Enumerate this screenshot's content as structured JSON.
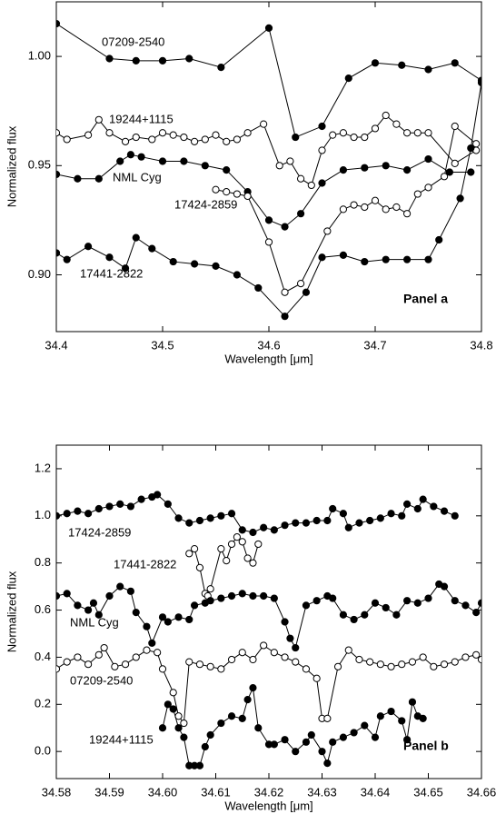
{
  "chart_data": [
    {
      "type": "line",
      "xlabel": "Wavelength [μm]",
      "ylabel": "Normalized flux",
      "annotation": "Panel   a",
      "xlim": [
        34.4,
        34.8
      ],
      "xticks": [
        34.4,
        34.5,
        34.6,
        34.7,
        34.8
      ],
      "ylim": [
        0.874,
        1.025
      ],
      "yticks": [
        {
          "value": 0.9,
          "label": "0.90"
        },
        {
          "value": 0.95,
          "label": "0.95"
        },
        {
          "value": 1.0,
          "label": "1.00"
        }
      ],
      "grid": false,
      "series": [
        {
          "name": "07209-2540",
          "color": "#000000",
          "filled": true,
          "x": [
            34.4,
            34.45,
            34.475,
            34.5,
            34.525,
            34.555,
            34.6,
            34.625,
            34.65,
            34.675,
            34.7,
            34.725,
            34.75,
            34.775,
            34.8
          ],
          "values": [
            1.015,
            0.999,
            0.998,
            0.998,
            0.999,
            0.995,
            1.013,
            0.963,
            0.968,
            0.99,
            0.997,
            0.996,
            0.994,
            0.997,
            0.989
          ]
        },
        {
          "name": "19244+1115",
          "color": "#000000",
          "filled": false,
          "x": [
            34.4,
            34.41,
            34.43,
            34.44,
            34.45,
            34.465,
            34.475,
            34.49,
            34.5,
            34.51,
            34.52,
            34.53,
            34.54,
            34.55,
            34.56,
            34.57,
            34.58,
            34.595,
            34.61,
            34.62,
            34.63,
            34.64,
            34.65,
            34.66,
            34.67,
            34.68,
            34.69,
            34.7,
            34.71,
            34.72,
            34.73,
            34.74,
            34.75,
            34.775,
            34.795
          ],
          "values": [
            0.965,
            0.962,
            0.964,
            0.971,
            0.965,
            0.961,
            0.963,
            0.962,
            0.965,
            0.964,
            0.963,
            0.961,
            0.962,
            0.964,
            0.961,
            0.962,
            0.965,
            0.969,
            0.95,
            0.952,
            0.944,
            0.941,
            0.957,
            0.964,
            0.965,
            0.963,
            0.963,
            0.967,
            0.973,
            0.969,
            0.965,
            0.965,
            0.965,
            0.951,
            0.957
          ]
        },
        {
          "name": "NML Cyg",
          "color": "#000000",
          "filled": true,
          "x": [
            34.4,
            34.42,
            34.44,
            34.46,
            34.47,
            34.48,
            34.5,
            34.52,
            34.54,
            34.56,
            34.58,
            34.6,
            34.615,
            34.63,
            34.65,
            34.67,
            34.69,
            34.71,
            34.73,
            34.75,
            34.77,
            34.79
          ],
          "values": [
            0.946,
            0.944,
            0.944,
            0.952,
            0.955,
            0.954,
            0.952,
            0.952,
            0.95,
            0.948,
            0.938,
            0.925,
            0.922,
            0.928,
            0.942,
            0.948,
            0.949,
            0.95,
            0.948,
            0.953,
            0.947,
            0.947
          ]
        },
        {
          "name": "17424-2859",
          "color": "#000000",
          "filled": false,
          "x": [
            34.55,
            34.56,
            34.57,
            34.58,
            34.6,
            34.615,
            34.63,
            34.655,
            34.67,
            34.68,
            34.69,
            34.7,
            34.71,
            34.72,
            34.73,
            34.74,
            34.75,
            34.765,
            34.775,
            34.795
          ],
          "values": [
            0.939,
            0.938,
            0.937,
            0.936,
            0.915,
            0.892,
            0.896,
            0.92,
            0.93,
            0.932,
            0.931,
            0.934,
            0.93,
            0.931,
            0.928,
            0.937,
            0.94,
            0.945,
            0.968,
            0.96
          ]
        },
        {
          "name": "17441-2822",
          "color": "#000000",
          "filled": true,
          "x": [
            34.4,
            34.41,
            34.43,
            34.45,
            34.465,
            34.475,
            34.49,
            34.51,
            34.53,
            34.55,
            34.57,
            34.59,
            34.615,
            34.635,
            34.65,
            34.67,
            34.69,
            34.71,
            34.73,
            34.75,
            34.76,
            34.78,
            34.79,
            34.8
          ],
          "values": [
            0.91,
            0.907,
            0.913,
            0.908,
            0.903,
            0.917,
            0.912,
            0.906,
            0.905,
            0.904,
            0.9,
            0.894,
            0.881,
            0.892,
            0.908,
            0.909,
            0.906,
            0.907,
            0.907,
            0.907,
            0.916,
            0.935,
            0.958,
            0.988
          ]
        }
      ]
    },
    {
      "type": "line",
      "xlabel": "Wavelength [μm]",
      "ylabel": "Normalized  flux",
      "annotation": "Panel  b",
      "xlim": [
        34.58,
        34.66
      ],
      "xticks": [
        34.58,
        34.59,
        {
          "value": 34.6,
          "label": "34.60"
        },
        34.61,
        34.62,
        34.63,
        34.64,
        34.65,
        34.66
      ],
      "ylim": [
        -0.115,
        1.3
      ],
      "yticks": [
        {
          "value": 0,
          "label": "0.0"
        },
        0.2,
        0.4,
        0.6,
        0.8,
        {
          "value": 1,
          "label": "1.0"
        },
        1.2
      ],
      "grid": false,
      "series": [
        {
          "name": "17424-2859",
          "color": "#000000",
          "filled": true,
          "x": [
            34.58,
            34.582,
            34.584,
            34.586,
            34.588,
            34.59,
            34.592,
            34.594,
            34.596,
            34.598,
            34.599,
            34.601,
            34.603,
            34.605,
            34.607,
            34.609,
            34.611,
            34.613,
            34.615,
            34.617,
            34.619,
            34.621,
            34.623,
            34.625,
            34.627,
            34.629,
            34.631,
            34.632,
            34.634,
            34.635,
            34.637,
            34.639,
            34.641,
            34.643,
            34.645,
            34.646,
            34.648,
            34.649,
            34.651,
            34.653,
            34.655
          ],
          "values": [
            1.0,
            1.01,
            1.02,
            1.01,
            1.03,
            1.04,
            1.05,
            1.04,
            1.07,
            1.08,
            1.09,
            1.05,
            0.99,
            0.97,
            0.98,
            0.99,
            1.0,
            1.01,
            0.94,
            0.93,
            0.95,
            0.94,
            0.96,
            0.97,
            0.97,
            0.98,
            0.98,
            1.03,
            1.01,
            0.95,
            0.97,
            0.98,
            0.99,
            1.01,
            1.0,
            1.05,
            1.03,
            1.07,
            1.04,
            1.02,
            1.0
          ]
        },
        {
          "name": "17441-2822",
          "color": "#000000",
          "filled": false,
          "x": [
            34.605,
            34.606,
            34.607,
            34.608,
            34.6085,
            34.609,
            34.611,
            34.612,
            34.613,
            34.614,
            34.615,
            34.616,
            34.617,
            34.618
          ],
          "values": [
            0.84,
            0.86,
            0.78,
            0.67,
            0.66,
            0.69,
            0.86,
            0.81,
            0.88,
            0.91,
            0.89,
            0.82,
            0.8,
            0.88
          ]
        },
        {
          "name": "NML Cyg",
          "color": "#000000",
          "filled": true,
          "x": [
            34.58,
            34.582,
            34.584,
            34.586,
            34.587,
            34.588,
            34.59,
            34.592,
            34.594,
            34.595,
            34.597,
            34.598,
            34.6,
            34.601,
            34.603,
            34.605,
            34.606,
            34.608,
            34.609,
            34.611,
            34.613,
            34.615,
            34.617,
            34.619,
            34.621,
            34.623,
            34.624,
            34.625,
            34.627,
            34.629,
            34.631,
            34.632,
            34.634,
            34.636,
            34.638,
            34.64,
            34.642,
            34.644,
            34.646,
            34.648,
            34.65,
            34.652,
            34.653,
            34.655,
            34.657,
            34.659,
            34.66
          ],
          "values": [
            0.66,
            0.67,
            0.62,
            0.6,
            0.63,
            0.58,
            0.66,
            0.7,
            0.68,
            0.59,
            0.53,
            0.46,
            0.57,
            0.55,
            0.57,
            0.56,
            0.62,
            0.63,
            0.64,
            0.65,
            0.66,
            0.67,
            0.66,
            0.66,
            0.65,
            0.55,
            0.48,
            0.44,
            0.62,
            0.64,
            0.66,
            0.65,
            0.58,
            0.56,
            0.58,
            0.63,
            0.61,
            0.58,
            0.64,
            0.63,
            0.65,
            0.71,
            0.7,
            0.64,
            0.62,
            0.59,
            0.63
          ]
        },
        {
          "name": "07209-2540",
          "color": "#000000",
          "filled": false,
          "x": [
            34.58,
            34.582,
            34.584,
            34.586,
            34.588,
            34.589,
            34.591,
            34.593,
            34.595,
            34.597,
            34.599,
            34.6,
            34.602,
            34.603,
            34.604,
            34.605,
            34.607,
            34.609,
            34.611,
            34.613,
            34.615,
            34.617,
            34.619,
            34.621,
            34.623,
            34.625,
            34.627,
            34.629,
            34.63,
            34.631,
            34.633,
            34.635,
            34.637,
            34.639,
            34.641,
            34.643,
            34.645,
            34.647,
            34.649,
            34.651,
            34.653,
            34.655,
            34.657,
            34.659,
            34.66
          ],
          "values": [
            0.35,
            0.38,
            0.4,
            0.37,
            0.41,
            0.44,
            0.36,
            0.37,
            0.4,
            0.43,
            0.42,
            0.35,
            0.25,
            0.15,
            0.12,
            0.38,
            0.37,
            0.36,
            0.35,
            0.39,
            0.42,
            0.39,
            0.45,
            0.42,
            0.4,
            0.38,
            0.35,
            0.31,
            0.14,
            0.14,
            0.36,
            0.43,
            0.39,
            0.38,
            0.37,
            0.36,
            0.37,
            0.38,
            0.4,
            0.36,
            0.37,
            0.38,
            0.4,
            0.41,
            0.39
          ]
        },
        {
          "name": "19244+1115",
          "color": "#000000",
          "filled": true,
          "x": [
            34.6,
            34.601,
            34.602,
            34.603,
            34.604,
            34.605,
            34.606,
            34.607,
            34.608,
            34.609,
            34.611,
            34.613,
            34.615,
            34.616,
            34.617,
            34.618,
            34.62,
            34.621,
            34.623,
            34.625,
            34.627,
            34.628,
            34.63,
            34.631,
            34.632,
            34.634,
            34.636,
            34.638,
            34.64,
            34.641,
            34.643,
            34.645,
            34.646,
            34.647,
            34.648,
            34.649
          ],
          "values": [
            0.1,
            0.2,
            0.18,
            0.1,
            0.06,
            -0.06,
            -0.06,
            -0.06,
            0.02,
            0.07,
            0.12,
            0.15,
            0.14,
            0.22,
            0.27,
            0.1,
            0.03,
            0.03,
            0.05,
            0.0,
            0.04,
            0.07,
            0.0,
            -0.05,
            0.04,
            0.06,
            0.08,
            0.11,
            0.06,
            0.15,
            0.17,
            0.13,
            0.05,
            0.21,
            0.15,
            0.14
          ]
        }
      ]
    }
  ]
}
